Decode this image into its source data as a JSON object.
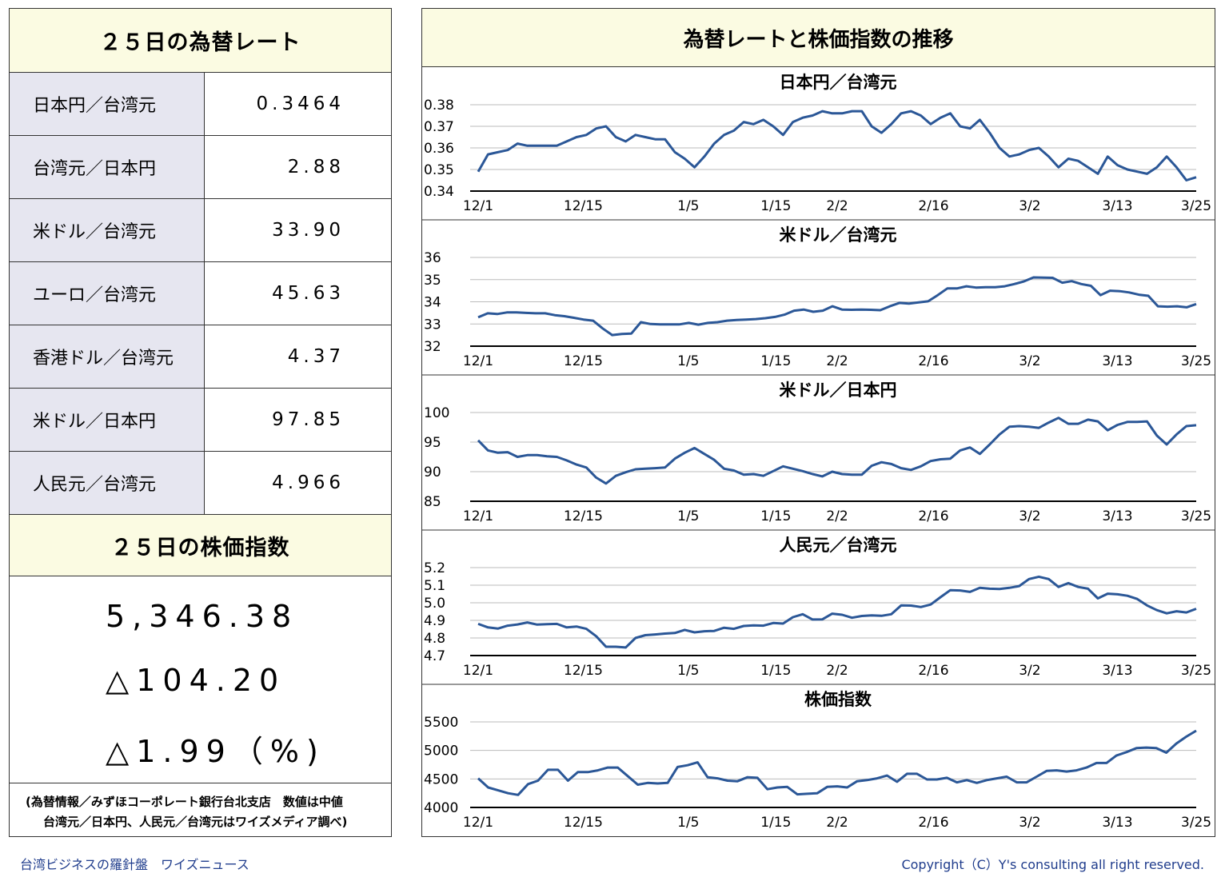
{
  "left": {
    "rates_title": "２５日の為替レート",
    "rates": [
      {
        "label": "日本円／台湾元",
        "value": "0.3464"
      },
      {
        "label": "台湾元／日本円",
        "value": "2.88"
      },
      {
        "label": "米ドル／台湾元",
        "value": "33.90"
      },
      {
        "label": "ユーロ／台湾元",
        "value": "45.63"
      },
      {
        "label": "香港ドル／台湾元",
        "value": "4.37"
      },
      {
        "label": "米ドル／日本円",
        "value": "97.85"
      },
      {
        "label": "人民元／台湾元",
        "value": "4.966"
      }
    ],
    "stock_title": "２５日の株価指数",
    "stock_value": "5,346.38",
    "stock_change": "△104.20",
    "stock_change_pct": "△1.99（%)",
    "note_line1": "(為替情報／みずほコーポレート銀行台北支店　数値は中値",
    "note_line2": "台湾元／日本円、人民元／台湾元はワイズメディア調べ)"
  },
  "right": {
    "title": "為替レートと株価指数の推移"
  },
  "footer": {
    "left": "台湾ビジネスの羅針盤　ワイズニュース",
    "right": "Copyright（C）Y's consulting all right reserved."
  },
  "colors": {
    "line": "#2b5797",
    "header_bg": "#fbfbe2",
    "label_bg": "#e6e6f0",
    "footer_text": "#1f3c8c"
  },
  "chart_data": [
    {
      "type": "line",
      "title": "日本円／台湾元",
      "x_ticks": [
        "12/1",
        "12/15",
        "1/5",
        "1/15",
        "2/2",
        "2/16",
        "3/2",
        "3/13",
        "3/25"
      ],
      "x_tick_index": [
        0,
        12,
        24,
        34,
        41,
        52,
        63,
        73,
        82
      ],
      "y_ticks": [
        "0.34",
        "0.35",
        "0.36",
        "0.37",
        "0.38"
      ],
      "ylim": [
        0.34,
        0.38
      ],
      "grid": true,
      "values": [
        0.349,
        0.357,
        0.358,
        0.359,
        0.362,
        0.361,
        0.361,
        0.361,
        0.361,
        0.363,
        0.365,
        0.366,
        0.369,
        0.37,
        0.365,
        0.363,
        0.366,
        0.365,
        0.364,
        0.364,
        0.358,
        0.355,
        0.351,
        0.356,
        0.362,
        0.366,
        0.368,
        0.372,
        0.371,
        0.373,
        0.37,
        0.366,
        0.372,
        0.374,
        0.375,
        0.377,
        0.376,
        0.376,
        0.377,
        0.377,
        0.37,
        0.367,
        0.371,
        0.376,
        0.377,
        0.375,
        0.371,
        0.374,
        0.376,
        0.37,
        0.369,
        0.373,
        0.367,
        0.36,
        0.356,
        0.357,
        0.359,
        0.36,
        0.356,
        0.351,
        0.355,
        0.354,
        0.351,
        0.348,
        0.356,
        0.352,
        0.35,
        0.349,
        0.348,
        0.351,
        0.356,
        0.351,
        0.345,
        0.3464
      ]
    },
    {
      "type": "line",
      "title": "米ドル／台湾元",
      "x_ticks": [
        "12/1",
        "12/15",
        "1/5",
        "1/15",
        "2/2",
        "2/16",
        "3/2",
        "3/13",
        "3/25"
      ],
      "x_tick_index": [
        0,
        12,
        24,
        34,
        41,
        52,
        63,
        73,
        82
      ],
      "y_ticks": [
        "32",
        "33",
        "34",
        "35",
        "36"
      ],
      "ylim": [
        32,
        36
      ],
      "grid": true,
      "values": [
        33.3,
        33.48,
        33.45,
        33.52,
        33.52,
        33.5,
        33.48,
        33.48,
        33.4,
        33.35,
        33.28,
        33.2,
        33.15,
        32.8,
        32.5,
        32.55,
        32.57,
        33.08,
        33.0,
        32.98,
        32.98,
        32.98,
        33.05,
        32.97,
        33.05,
        33.08,
        33.15,
        33.18,
        33.2,
        33.22,
        33.26,
        33.32,
        33.42,
        33.6,
        33.65,
        33.55,
        33.6,
        33.8,
        33.65,
        33.64,
        33.65,
        33.64,
        33.62,
        33.8,
        33.95,
        33.92,
        33.97,
        34.02,
        34.3,
        34.6,
        34.6,
        34.7,
        34.64,
        34.66,
        34.66,
        34.7,
        34.8,
        34.92,
        35.1,
        35.09,
        35.08,
        34.86,
        34.93,
        34.8,
        34.72,
        34.3,
        34.5,
        34.48,
        34.42,
        34.32,
        34.27,
        33.8,
        33.78,
        33.8,
        33.75,
        33.9
      ]
    },
    {
      "type": "line",
      "title": "米ドル／日本円",
      "x_ticks": [
        "12/1",
        "12/15",
        "1/5",
        "1/15",
        "2/2",
        "2/16",
        "3/2",
        "3/13",
        "3/25"
      ],
      "x_tick_index": [
        0,
        12,
        24,
        34,
        41,
        52,
        63,
        73,
        82
      ],
      "y_ticks": [
        "85",
        "90",
        "95",
        "100"
      ],
      "ylim": [
        85,
        100
      ],
      "grid": true,
      "values": [
        95.3,
        93.6,
        93.2,
        93.3,
        92.5,
        92.8,
        92.8,
        92.6,
        92.5,
        91.9,
        91.2,
        90.7,
        89.0,
        88.0,
        89.3,
        89.9,
        90.4,
        90.5,
        90.6,
        90.7,
        92.2,
        93.2,
        94.0,
        93.0,
        92.0,
        90.5,
        90.2,
        89.5,
        89.6,
        89.3,
        90.1,
        90.9,
        90.5,
        90.1,
        89.6,
        89.2,
        90.0,
        89.6,
        89.5,
        89.5,
        91.0,
        91.6,
        91.3,
        90.6,
        90.3,
        90.9,
        91.8,
        92.1,
        92.2,
        93.6,
        94.1,
        93.0,
        94.6,
        96.3,
        97.6,
        97.7,
        97.6,
        97.4,
        98.3,
        99.1,
        98.1,
        98.1,
        98.8,
        98.5,
        97.0,
        97.9,
        98.4,
        98.4,
        98.5,
        96.1,
        94.6,
        96.3,
        97.7,
        97.85
      ]
    },
    {
      "type": "line",
      "title": "人民元／台湾元",
      "x_ticks": [
        "12/1",
        "12/15",
        "1/5",
        "1/15",
        "2/2",
        "2/16",
        "3/2",
        "3/13",
        "3/25"
      ],
      "x_tick_index": [
        0,
        12,
        24,
        34,
        41,
        52,
        63,
        73,
        82
      ],
      "y_ticks": [
        "4.7",
        "4.8",
        "4.9",
        "5.0",
        "5.1",
        "5.2"
      ],
      "ylim": [
        4.7,
        5.2
      ],
      "grid": true,
      "values": [
        4.88,
        4.86,
        4.853,
        4.87,
        4.877,
        4.888,
        4.876,
        4.878,
        4.88,
        4.86,
        4.865,
        4.852,
        4.81,
        4.75,
        4.75,
        4.746,
        4.8,
        4.816,
        4.82,
        4.825,
        4.828,
        4.846,
        4.832,
        4.838,
        4.84,
        4.858,
        4.852,
        4.868,
        4.872,
        4.87,
        4.885,
        4.882,
        4.918,
        4.935,
        4.905,
        4.906,
        4.938,
        4.932,
        4.915,
        4.925,
        4.928,
        4.926,
        4.935,
        4.985,
        4.984,
        4.976,
        4.99,
        5.032,
        5.072,
        5.07,
        5.062,
        5.085,
        5.08,
        5.078,
        5.085,
        5.095,
        5.135,
        5.148,
        5.135,
        5.09,
        5.112,
        5.09,
        5.08,
        5.025,
        5.052,
        5.048,
        5.04,
        5.022,
        4.985,
        4.958,
        4.94,
        4.952,
        4.945,
        4.966
      ]
    },
    {
      "type": "line",
      "title": "株価指数",
      "x_ticks": [
        "12/1",
        "12/15",
        "1/5",
        "1/15",
        "2/2",
        "2/16",
        "3/2",
        "3/13",
        "3/25"
      ],
      "x_tick_index": [
        0,
        12,
        24,
        34,
        41,
        52,
        63,
        73,
        82
      ],
      "y_ticks": [
        "4000",
        "4500",
        "5000",
        "5500"
      ],
      "ylim": [
        4000,
        5500
      ],
      "grid": true,
      "values": [
        4510,
        4350,
        4300,
        4250,
        4220,
        4410,
        4470,
        4660,
        4660,
        4470,
        4620,
        4620,
        4650,
        4700,
        4700,
        4550,
        4400,
        4430,
        4420,
        4430,
        4710,
        4740,
        4790,
        4530,
        4510,
        4470,
        4460,
        4530,
        4520,
        4320,
        4350,
        4360,
        4230,
        4240,
        4250,
        4360,
        4370,
        4350,
        4460,
        4480,
        4510,
        4560,
        4450,
        4590,
        4590,
        4490,
        4490,
        4520,
        4440,
        4480,
        4430,
        4480,
        4510,
        4540,
        4440,
        4440,
        4540,
        4640,
        4650,
        4630,
        4650,
        4700,
        4780,
        4780,
        4910,
        4970,
        5040,
        5050,
        5040,
        4960,
        5120,
        5240,
        5346.38
      ]
    }
  ]
}
